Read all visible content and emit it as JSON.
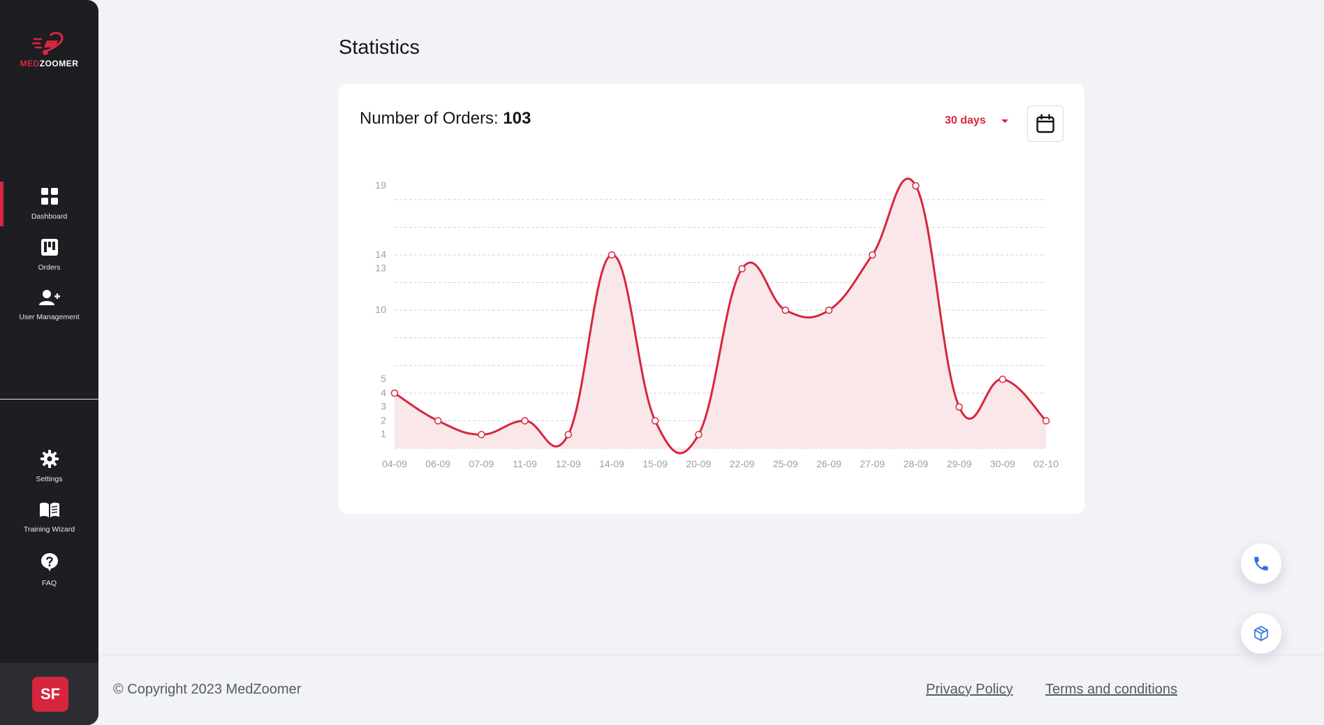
{
  "brand": {
    "logo_text_red": "MED",
    "logo_text_white": "ZOOMER"
  },
  "sidebar": {
    "items": [
      {
        "label": "Dashboard",
        "icon": "grid-icon",
        "active": true
      },
      {
        "label": "Orders",
        "icon": "kanban-icon",
        "active": false
      },
      {
        "label": "User Management",
        "icon": "add-user-icon",
        "active": false
      }
    ],
    "bottom_items": [
      {
        "label": "Settings",
        "icon": "gear-icon"
      },
      {
        "label": "Training Wizard",
        "icon": "book-icon"
      },
      {
        "label": "FAQ",
        "icon": "help-bubble-icon"
      }
    ],
    "avatar_initials": "SF"
  },
  "page": {
    "title": "Statistics"
  },
  "card": {
    "title_label": "Number of Orders:",
    "title_value": "103",
    "range_label": "30 days",
    "calendar_icon": "calendar-icon"
  },
  "colors": {
    "accent": "#d6263d",
    "fill": "#f9e7e9",
    "sidebar": "#1c1e22"
  },
  "chart_data": {
    "type": "area",
    "x": [
      "04-09",
      "06-09",
      "07-09",
      "11-09",
      "12-09",
      "14-09",
      "15-09",
      "20-09",
      "22-09",
      "25-09",
      "26-09",
      "27-09",
      "28-09",
      "29-09",
      "30-09",
      "02-10"
    ],
    "series": [
      {
        "values": [
          4,
          2,
          1,
          2,
          1,
          14,
          2,
          1,
          13,
          10,
          10,
          14,
          19,
          3,
          5,
          2
        ]
      }
    ],
    "y_ticks": [
      1,
      2,
      3,
      4,
      5,
      10,
      13,
      14,
      19
    ],
    "ylim": [
      0,
      19
    ],
    "grid": true,
    "smooth": true
  },
  "fabs": [
    {
      "icon": "phone-icon"
    },
    {
      "icon": "box-icon"
    }
  ],
  "footer": {
    "copyright": "© Copyright 2023 MedZoomer",
    "links": [
      "Privacy Policy",
      "Terms and conditions"
    ]
  }
}
